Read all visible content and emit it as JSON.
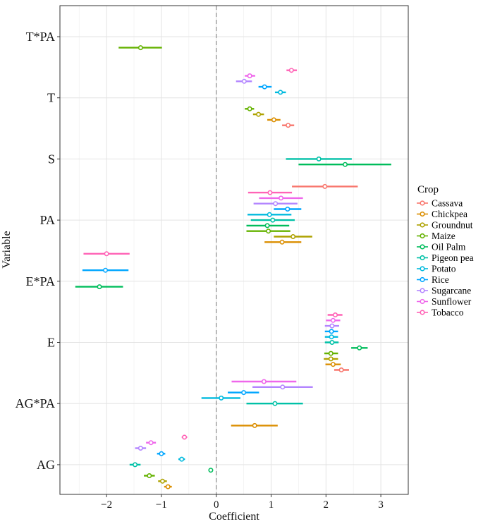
{
  "chart_data": {
    "type": "forest",
    "xlabel": "Coefficient",
    "ylabel": "Variable",
    "xlim": [
      -2.85,
      3.5
    ],
    "xticks": [
      -2,
      -1,
      0,
      1,
      2,
      3
    ],
    "reference_line": 0,
    "grid": true,
    "legend": {
      "title": "Crop",
      "position": "right"
    },
    "variables": [
      "T*PA",
      "T",
      "S",
      "PA",
      "E*PA",
      "E",
      "AG*PA",
      "AG"
    ],
    "crops": [
      {
        "name": "Cassava",
        "color": "#F8766D"
      },
      {
        "name": "Chickpea",
        "color": "#DB8E00"
      },
      {
        "name": "Groundnut",
        "color": "#AEA200"
      },
      {
        "name": "Maize",
        "color": "#64B200"
      },
      {
        "name": "Oil Palm",
        "color": "#00BD5C"
      },
      {
        "name": "Pigeon pea",
        "color": "#00C1A7"
      },
      {
        "name": "Potato",
        "color": "#00BADE"
      },
      {
        "name": "Rice",
        "color": "#00A6FF"
      },
      {
        "name": "Sugarcane",
        "color": "#B385FF"
      },
      {
        "name": "Sunflower",
        "color": "#EF67EB"
      },
      {
        "name": "Tobacco",
        "color": "#FF63B6"
      }
    ],
    "points": [
      {
        "variable": "T*PA",
        "crop": "Maize",
        "est": -1.38,
        "lo": -1.78,
        "hi": -0.99
      },
      {
        "variable": "T",
        "crop": "Tobacco",
        "est": 1.37,
        "lo": 1.28,
        "hi": 1.47
      },
      {
        "variable": "T",
        "crop": "Sunflower",
        "est": 0.61,
        "lo": 0.52,
        "hi": 0.71
      },
      {
        "variable": "T",
        "crop": "Sugarcane",
        "est": 0.51,
        "lo": 0.36,
        "hi": 0.65
      },
      {
        "variable": "T",
        "crop": "Rice",
        "est": 0.88,
        "lo": 0.77,
        "hi": 1.01
      },
      {
        "variable": "T",
        "crop": "Potato",
        "est": 1.17,
        "lo": 1.07,
        "hi": 1.27
      },
      {
        "variable": "T",
        "crop": "Maize",
        "est": 0.61,
        "lo": 0.52,
        "hi": 0.69
      },
      {
        "variable": "T",
        "crop": "Groundnut",
        "est": 0.77,
        "lo": 0.67,
        "hi": 0.87
      },
      {
        "variable": "T",
        "crop": "Chickpea",
        "est": 1.05,
        "lo": 0.93,
        "hi": 1.17
      },
      {
        "variable": "T",
        "crop": "Cassava",
        "est": 1.31,
        "lo": 1.2,
        "hi": 1.42
      },
      {
        "variable": "S",
        "crop": "Pigeon pea",
        "est": 1.87,
        "lo": 1.27,
        "hi": 2.47
      },
      {
        "variable": "S",
        "crop": "Oil Palm",
        "est": 2.35,
        "lo": 1.5,
        "hi": 3.19
      },
      {
        "variable": "S",
        "crop": "Cassava",
        "est": 1.98,
        "lo": 1.38,
        "hi": 2.58
      },
      {
        "variable": "PA",
        "crop": "Tobacco",
        "est": 0.98,
        "lo": 0.58,
        "hi": 1.38
      },
      {
        "variable": "PA",
        "crop": "Sunflower",
        "est": 1.18,
        "lo": 0.78,
        "hi": 1.58
      },
      {
        "variable": "PA",
        "crop": "Sugarcane",
        "est": 1.08,
        "lo": 0.68,
        "hi": 1.48
      },
      {
        "variable": "PA",
        "crop": "Rice",
        "est": 1.3,
        "lo": 1.05,
        "hi": 1.55
      },
      {
        "variable": "PA",
        "crop": "Potato",
        "est": 0.97,
        "lo": 0.57,
        "hi": 1.37
      },
      {
        "variable": "PA",
        "crop": "Pigeon pea",
        "est": 1.03,
        "lo": 0.63,
        "hi": 1.43
      },
      {
        "variable": "PA",
        "crop": "Oil Palm",
        "est": 0.93,
        "lo": 0.55,
        "hi": 1.33
      },
      {
        "variable": "PA",
        "crop": "Maize",
        "est": 0.95,
        "lo": 0.55,
        "hi": 1.35
      },
      {
        "variable": "PA",
        "crop": "Groundnut",
        "est": 1.4,
        "lo": 1.05,
        "hi": 1.75
      },
      {
        "variable": "PA",
        "crop": "Chickpea",
        "est": 1.2,
        "lo": 0.88,
        "hi": 1.55
      },
      {
        "variable": "E*PA",
        "crop": "Tobacco",
        "est": -2.0,
        "lo": -2.42,
        "hi": -1.58
      },
      {
        "variable": "E*PA",
        "crop": "Rice",
        "est": -2.02,
        "lo": -2.44,
        "hi": -1.6
      },
      {
        "variable": "E*PA",
        "crop": "Oil Palm",
        "est": -2.13,
        "lo": -2.57,
        "hi": -1.7
      },
      {
        "variable": "E",
        "crop": "Tobacco",
        "est": 2.17,
        "lo": 2.03,
        "hi": 2.3
      },
      {
        "variable": "E",
        "crop": "Sunflower",
        "est": 2.13,
        "lo": 2.0,
        "hi": 2.26
      },
      {
        "variable": "E",
        "crop": "Sugarcane",
        "est": 2.11,
        "lo": 1.98,
        "hi": 2.24
      },
      {
        "variable": "E",
        "crop": "Rice",
        "est": 2.1,
        "lo": 1.98,
        "hi": 2.22
      },
      {
        "variable": "E",
        "crop": "Potato",
        "est": 2.1,
        "lo": 1.98,
        "hi": 2.22
      },
      {
        "variable": "E",
        "crop": "Pigeon pea",
        "est": 2.11,
        "lo": 1.98,
        "hi": 2.23
      },
      {
        "variable": "E",
        "crop": "Oil Palm",
        "est": 2.61,
        "lo": 2.46,
        "hi": 2.76
      },
      {
        "variable": "E",
        "crop": "Maize",
        "est": 2.09,
        "lo": 1.97,
        "hi": 2.22
      },
      {
        "variable": "E",
        "crop": "Groundnut",
        "est": 2.09,
        "lo": 1.96,
        "hi": 2.22
      },
      {
        "variable": "E",
        "crop": "Chickpea",
        "est": 2.13,
        "lo": 1.99,
        "hi": 2.27
      },
      {
        "variable": "E",
        "crop": "Cassava",
        "est": 2.28,
        "lo": 2.15,
        "hi": 2.42
      },
      {
        "variable": "AG*PA",
        "crop": "Sunflower",
        "est": 0.87,
        "lo": 0.28,
        "hi": 1.46
      },
      {
        "variable": "AG*PA",
        "crop": "Sugarcane",
        "est": 1.21,
        "lo": 0.66,
        "hi": 1.76
      },
      {
        "variable": "AG*PA",
        "crop": "Rice",
        "est": 0.5,
        "lo": 0.21,
        "hi": 0.78
      },
      {
        "variable": "AG*PA",
        "crop": "Potato",
        "est": 0.09,
        "lo": -0.27,
        "hi": 0.44
      },
      {
        "variable": "AG*PA",
        "crop": "Pigeon pea",
        "est": 1.07,
        "lo": 0.55,
        "hi": 1.58
      },
      {
        "variable": "AG*PA",
        "crop": "Chickpea",
        "est": 0.7,
        "lo": 0.27,
        "hi": 1.12
      },
      {
        "variable": "AG",
        "crop": "Tobacco",
        "est": -0.58,
        "lo": -0.63,
        "hi": -0.53
      },
      {
        "variable": "AG",
        "crop": "Sunflower",
        "est": -1.19,
        "lo": -1.28,
        "hi": -1.1
      },
      {
        "variable": "AG",
        "crop": "Sugarcane",
        "est": -1.38,
        "lo": -1.48,
        "hi": -1.28
      },
      {
        "variable": "AG",
        "crop": "Rice",
        "est": -1.0,
        "lo": -1.08,
        "hi": -0.93
      },
      {
        "variable": "AG",
        "crop": "Potato",
        "est": -0.63,
        "lo": -0.69,
        "hi": -0.57
      },
      {
        "variable": "AG",
        "crop": "Pigeon pea",
        "est": -1.48,
        "lo": -1.58,
        "hi": -1.38
      },
      {
        "variable": "AG",
        "crop": "Oil Palm",
        "est": -0.1,
        "lo": -0.13,
        "hi": -0.07
      },
      {
        "variable": "AG",
        "crop": "Maize",
        "est": -1.22,
        "lo": -1.32,
        "hi": -1.12
      },
      {
        "variable": "AG",
        "crop": "Groundnut",
        "est": -0.98,
        "lo": -1.06,
        "hi": -0.9
      },
      {
        "variable": "AG",
        "crop": "Chickpea",
        "est": -0.88,
        "lo": -0.95,
        "hi": -0.81
      }
    ]
  }
}
